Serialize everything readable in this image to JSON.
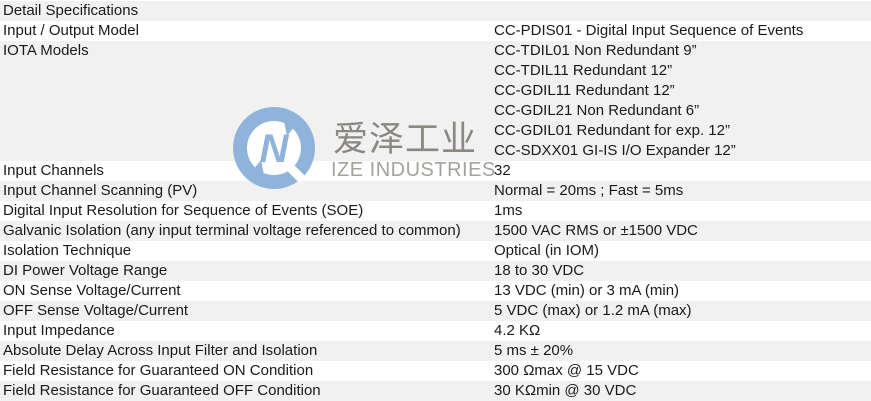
{
  "table": {
    "header": "Detail Specifications",
    "rows": [
      {
        "label": "Input / Output Model",
        "values": [
          "CC-PDIS01 - Digital Input Sequence of Events"
        ]
      },
      {
        "label": "IOTA Models",
        "values": [
          "CC-TDIL01 Non Redundant 9”",
          "CC-TDIL11 Redundant 12”",
          "CC-GDIL11 Redundant 12”",
          "CC-GDIL21 Non Redundant 6”",
          "CC-GDIL01 Redundant for exp. 12”",
          "CC-SDXX01 GI-IS I/O Expander 12”"
        ]
      },
      {
        "label": "Input Channels",
        "values": [
          "32"
        ]
      },
      {
        "label": "Input Channel Scanning (PV)",
        "values": [
          "Normal = 20ms ; Fast = 5ms"
        ]
      },
      {
        "label": "Digital Input Resolution for Sequence of Events (SOE)",
        "values": [
          "1ms"
        ]
      },
      {
        "label": "Galvanic Isolation (any input terminal voltage referenced to common)",
        "values": [
          "1500 VAC RMS or ±1500 VDC"
        ]
      },
      {
        "label": "Isolation Technique",
        "values": [
          "Optical (in IOM)"
        ]
      },
      {
        "label": "DI Power Voltage Range",
        "values": [
          "18 to 30 VDC"
        ]
      },
      {
        "label": "ON Sense Voltage/Current",
        "values": [
          "13 VDC (min) or 3 mA (min)"
        ]
      },
      {
        "label": "OFF Sense Voltage/Current",
        "values": [
          "5 VDC (max) or 1.2 mA (max)"
        ]
      },
      {
        "label": "Input Impedance",
        "values": [
          "4.2 KΩ"
        ]
      },
      {
        "label": "Absolute Delay Across Input Filter and Isolation",
        "values": [
          "5 ms ± 20%"
        ]
      },
      {
        "label": "Field Resistance for Guaranteed ON Condition",
        "values": [
          "300 Ωmax @ 15 VDC"
        ]
      },
      {
        "label": "Field Resistance for Guaranteed OFF Condition",
        "values": [
          "30 KΩmin @ 30 VDC"
        ]
      }
    ]
  },
  "watermark": {
    "cn_text": "爱泽工业",
    "en_text": "IZE INDUSTRIES",
    "logo_color": "#8fb3db",
    "cn_text_color": "#8b8781",
    "en_text_color": "#a5a29c"
  },
  "colors": {
    "row_stripe": "#f1f1f1",
    "text": "#1a1a1a",
    "background": "#ffffff"
  }
}
